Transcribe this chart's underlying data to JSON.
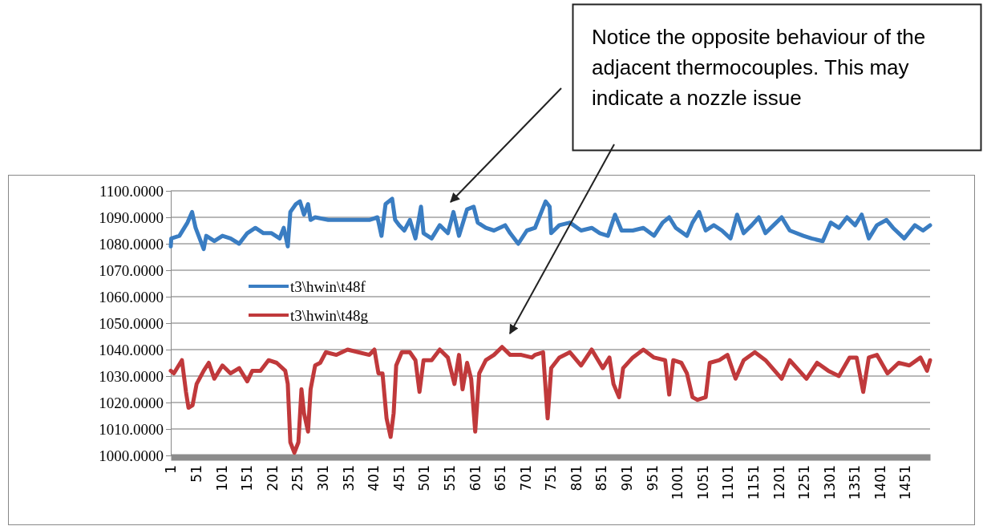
{
  "chart_data": {
    "type": "line",
    "annotations": [
      "Notice the opposite behaviour of the adjacent thermocouples. This may indicate a nozzle issue"
    ],
    "xlim": [
      1,
      1500
    ],
    "xticks": [
      1,
      51,
      101,
      151,
      201,
      251,
      301,
      351,
      401,
      451,
      501,
      551,
      601,
      651,
      701,
      751,
      801,
      851,
      901,
      951,
      1001,
      1051,
      1101,
      1151,
      1201,
      1251,
      1301,
      1351,
      1401,
      1451
    ],
    "ylim": [
      1000,
      1100
    ],
    "yticks": [
      {
        "value": 1000,
        "label": "1000.0000"
      },
      {
        "value": 1010,
        "label": "1010.0000"
      },
      {
        "value": 1020,
        "label": "1020.0000"
      },
      {
        "value": 1030,
        "label": "1030.0000"
      },
      {
        "value": 1040,
        "label": "1040.0000"
      },
      {
        "value": 1050,
        "label": "1050.0000"
      },
      {
        "value": 1060,
        "label": "1060.0000"
      },
      {
        "value": 1070,
        "label": "1070.0000"
      },
      {
        "value": 1080,
        "label": "1080.0000"
      },
      {
        "value": 1090,
        "label": "1090.0000"
      },
      {
        "value": 1100,
        "label": "1100.0000"
      }
    ],
    "grid": "y",
    "legend": "left",
    "marker": "none",
    "line_style": "solid",
    "series": [
      {
        "name": "t3\\hwin\\t48f",
        "color": "#3a7dc2",
        "x": [
          1,
          2,
          18,
          34,
          43,
          50,
          58,
          66,
          71,
          87,
          103,
          119,
          136,
          152,
          168,
          184,
          200,
          216,
          224,
          232,
          237,
          248,
          256,
          264,
          272,
          277,
          286,
          312,
          339,
          366,
          393,
          409,
          417,
          425,
          438,
          444,
          452,
          462,
          473,
          484,
          495,
          500,
          516,
          532,
          548,
          559,
          570,
          586,
          599,
          607,
          623,
          639,
          661,
          671,
          687,
          704,
          720,
          741,
          749,
          752,
          768,
          789,
          811,
          832,
          848,
          864,
          878,
          891,
          913,
          934,
          955,
          972,
          985,
          998,
          1020,
          1031,
          1044,
          1057,
          1073,
          1089,
          1106,
          1119,
          1132,
          1148,
          1162,
          1175,
          1191,
          1207,
          1223,
          1250,
          1266,
          1288,
          1304,
          1320,
          1336,
          1352,
          1365,
          1379,
          1395,
          1414,
          1427,
          1449,
          1470,
          1486,
          1500
        ],
        "values": [
          1079,
          1082,
          1083,
          1088,
          1092,
          1086,
          1082,
          1078,
          1083,
          1081,
          1083,
          1082,
          1080,
          1084,
          1086,
          1084,
          1084,
          1082,
          1086,
          1079,
          1092,
          1095,
          1096,
          1091,
          1095,
          1089,
          1090,
          1089,
          1089,
          1089,
          1089,
          1090,
          1083,
          1095,
          1097,
          1089,
          1087,
          1085,
          1089,
          1082,
          1094,
          1084,
          1082,
          1087,
          1084,
          1092,
          1083,
          1093,
          1094,
          1088,
          1086,
          1085,
          1087,
          1084,
          1080,
          1085,
          1086,
          1096,
          1094,
          1084,
          1087,
          1088,
          1085,
          1086,
          1084,
          1083,
          1091,
          1085,
          1085,
          1086,
          1083,
          1088,
          1090,
          1086,
          1083,
          1088,
          1092,
          1085,
          1087,
          1085,
          1082,
          1091,
          1084,
          1087,
          1090,
          1084,
          1087,
          1090,
          1085,
          1083,
          1082,
          1081,
          1088,
          1086,
          1090,
          1087,
          1091,
          1082,
          1087,
          1089,
          1086,
          1082,
          1087,
          1085,
          1087
        ]
      },
      {
        "name": "t3\\hwin\\t48g",
        "color": "#c0393b",
        "x": [
          1,
          7,
          23,
          31,
          36,
          44,
          52,
          66,
          76,
          87,
          103,
          119,
          136,
          152,
          162,
          178,
          194,
          210,
          227,
          232,
          237,
          245,
          253,
          259,
          264,
          272,
          277,
          286,
          296,
          307,
          328,
          350,
          371,
          393,
          403,
          411,
          419,
          427,
          435,
          441,
          446,
          457,
          473,
          484,
          492,
          500,
          516,
          532,
          548,
          561,
          570,
          577,
          586,
          594,
          602,
          610,
          623,
          639,
          655,
          671,
          693,
          714,
          720,
          736,
          745,
          752,
          768,
          789,
          811,
          832,
          854,
          867,
          875,
          886,
          894,
          913,
          934,
          955,
          977,
          985,
          993,
          1009,
          1020,
          1031,
          1041,
          1057,
          1065,
          1084,
          1100,
          1116,
          1132,
          1154,
          1175,
          1207,
          1223,
          1256,
          1277,
          1299,
          1320,
          1341,
          1355,
          1368,
          1379,
          1395,
          1416,
          1438,
          1459,
          1481,
          1494,
          1500
        ],
        "values": [
          1032,
          1031,
          1036,
          1024,
          1018,
          1019,
          1027,
          1032,
          1035,
          1029,
          1034,
          1031,
          1033,
          1028,
          1032,
          1032,
          1036,
          1035,
          1032,
          1027,
          1005,
          1001,
          1005,
          1025,
          1016,
          1009,
          1025,
          1034,
          1035,
          1039,
          1038,
          1040,
          1039,
          1038,
          1040,
          1031,
          1031,
          1014,
          1007,
          1016,
          1034,
          1039,
          1039,
          1036,
          1024,
          1036,
          1036,
          1040,
          1037,
          1027,
          1038,
          1025,
          1035,
          1029,
          1009,
          1031,
          1036,
          1038,
          1041,
          1038,
          1038,
          1037,
          1038,
          1039,
          1014,
          1033,
          1037,
          1039,
          1034,
          1040,
          1033,
          1037,
          1027,
          1022,
          1033,
          1037,
          1040,
          1037,
          1036,
          1023,
          1036,
          1035,
          1031,
          1022,
          1021,
          1022,
          1035,
          1036,
          1038,
          1029,
          1036,
          1039,
          1036,
          1029,
          1036,
          1029,
          1035,
          1032,
          1030,
          1037,
          1037,
          1024,
          1037,
          1038,
          1031,
          1035,
          1034,
          1037,
          1032,
          1036
        ]
      }
    ]
  }
}
